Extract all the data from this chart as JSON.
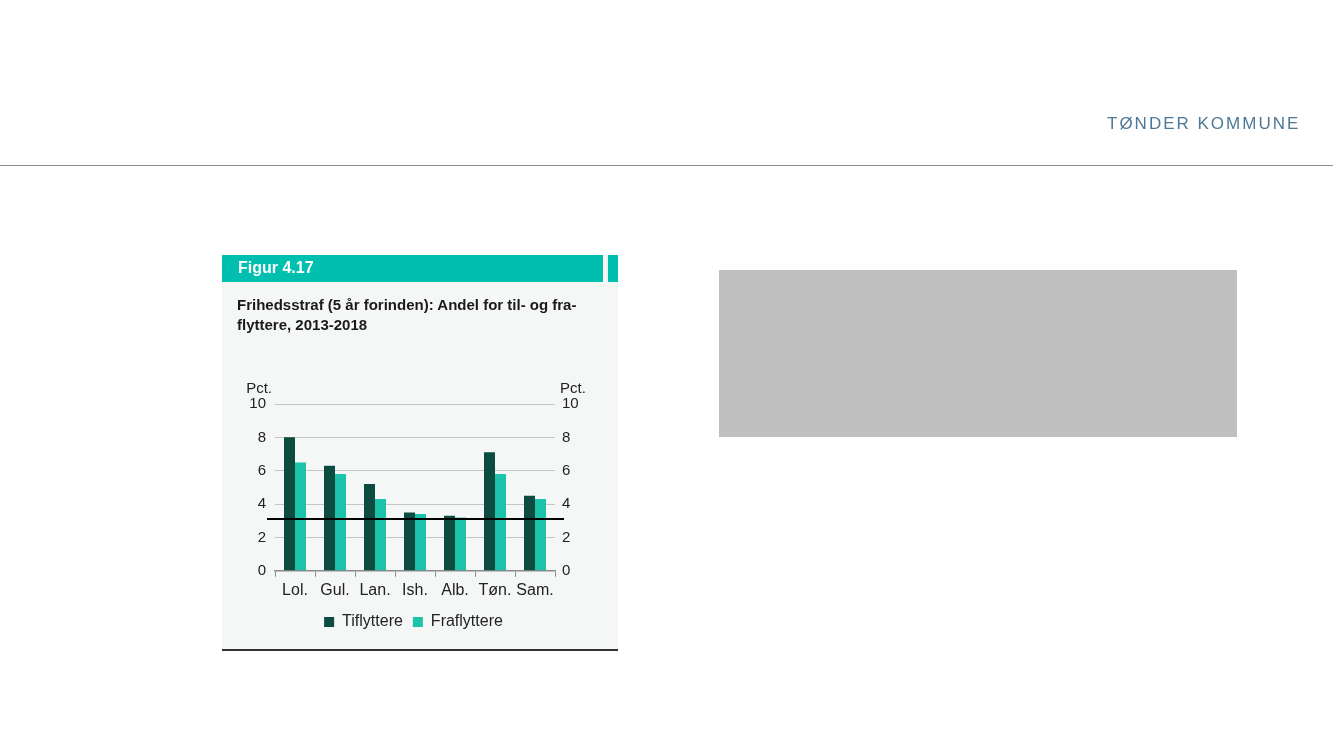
{
  "chart_data": {
    "type": "bar",
    "title": "Frihedsstraf (5 år forinden): Andel for til- og fra-flyttere, 2013-2018",
    "ylabel": "Pct.",
    "y2label": "Pct.",
    "categories": [
      "Lol.",
      "Gul.",
      "Lan.",
      "Ish.",
      "Alb.",
      "Tøn.",
      "Sam."
    ],
    "series": [
      {
        "name": "Tiflyttere",
        "color": "#0c4b40",
        "values": [
          8.0,
          6.3,
          5.2,
          3.5,
          3.3,
          7.1,
          4.5
        ]
      },
      {
        "name": "Fraflyttere",
        "color": "#1cc3aa",
        "values": [
          6.5,
          5.8,
          4.3,
          3.4,
          3.2,
          5.8,
          4.3
        ]
      }
    ],
    "ylim": [
      0,
      10
    ],
    "yticks": [
      0,
      2,
      4,
      6,
      8,
      10
    ],
    "y2lim": [
      0,
      10
    ],
    "y2ticks": [
      0,
      2,
      4,
      6,
      8,
      10
    ],
    "ref_lines": [
      {
        "axis": "y",
        "value": 3.1,
        "color": "#000000"
      }
    ],
    "grid": "y",
    "legend": "bottom",
    "annotations": [
      "Figur 4.17",
      "TØNDER KOMMUNE"
    ]
  }
}
